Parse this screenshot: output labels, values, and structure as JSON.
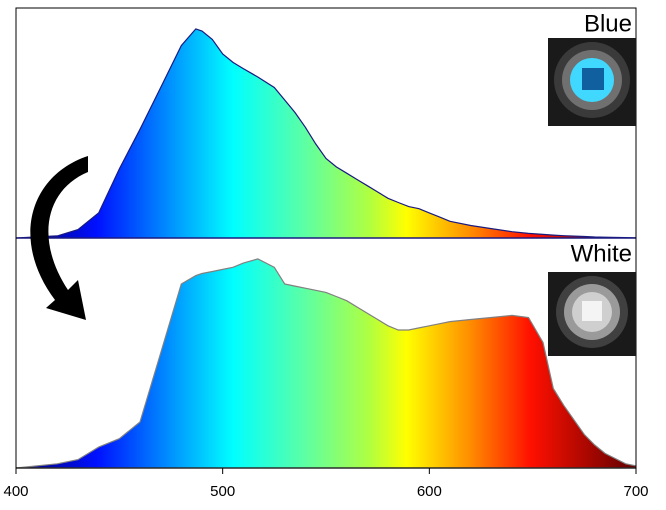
{
  "chart_data": {
    "type": "area",
    "x": [
      400,
      420,
      430,
      440,
      450,
      460,
      470,
      480,
      487,
      490,
      495,
      500,
      505,
      510,
      517,
      525,
      530,
      535,
      540,
      545,
      550,
      555,
      560,
      565,
      570,
      575,
      580,
      585,
      590,
      595,
      600,
      605,
      610,
      620,
      630,
      640,
      648,
      655,
      660,
      665,
      675,
      680,
      685,
      695,
      700
    ],
    "series": [
      {
        "name": "Blue",
        "color": "#1a1a80",
        "values": [
          0,
          0.01,
          0.04,
          0.12,
          0.33,
          0.52,
          0.72,
          0.92,
          1.0,
          0.99,
          0.95,
          0.88,
          0.84,
          0.81,
          0.77,
          0.72,
          0.66,
          0.6,
          0.53,
          0.45,
          0.38,
          0.34,
          0.31,
          0.28,
          0.25,
          0.22,
          0.19,
          0.17,
          0.15,
          0.14,
          0.12,
          0.1,
          0.08,
          0.06,
          0.045,
          0.03,
          0.022,
          0.017,
          0.014,
          0.011,
          0.007,
          0.005,
          0.004,
          0.002,
          0.001
        ]
      },
      {
        "name": "White",
        "color": "#808080",
        "values": [
          0,
          0.02,
          0.04,
          0.1,
          0.14,
          0.22,
          0.55,
          0.88,
          0.92,
          0.93,
          0.94,
          0.95,
          0.96,
          0.98,
          1.0,
          0.96,
          0.88,
          0.87,
          0.86,
          0.85,
          0.84,
          0.82,
          0.8,
          0.77,
          0.74,
          0.71,
          0.68,
          0.66,
          0.66,
          0.67,
          0.68,
          0.69,
          0.7,
          0.71,
          0.72,
          0.73,
          0.72,
          0.6,
          0.38,
          0.3,
          0.16,
          0.11,
          0.07,
          0.02,
          0.01
        ]
      }
    ],
    "xlim": [
      400,
      700
    ],
    "xticks": [
      400,
      500,
      600,
      700
    ],
    "ylim": [
      0,
      1.1
    ]
  }
}
